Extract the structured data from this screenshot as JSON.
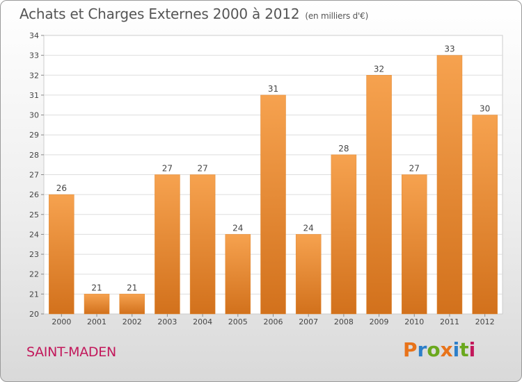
{
  "header": {
    "title": "Achats et Charges Externes 2000 à 2012",
    "unit": "(en milliers d'€)"
  },
  "footer": {
    "commune": "SAINT-MADEN",
    "logo": {
      "text": "Proxiti",
      "colors": [
        "#e8731a",
        "#2c7fc9",
        "#6aa81d",
        "#e8731a",
        "#2c7fc9",
        "#6aa81d",
        "#c2185b"
      ]
    }
  },
  "chart_data": {
    "type": "bar",
    "title": "Achats et Charges Externes 2000 à 2012",
    "subtitle": "(en milliers d'€)",
    "xlabel": "",
    "ylabel": "",
    "categories": [
      "2000",
      "2001",
      "2002",
      "2003",
      "2004",
      "2005",
      "2006",
      "2007",
      "2008",
      "2009",
      "2010",
      "2011",
      "2012"
    ],
    "values": [
      26,
      21,
      21,
      27,
      27,
      24,
      31,
      24,
      28,
      32,
      27,
      33,
      30
    ],
    "ylim": [
      20,
      34
    ],
    "yticks": [
      20,
      21,
      22,
      23,
      24,
      25,
      26,
      27,
      28,
      29,
      30,
      31,
      32,
      33,
      34
    ],
    "grid": true,
    "bar_color_top": "#f6a24f",
    "bar_color_bottom": "#d2711c"
  }
}
